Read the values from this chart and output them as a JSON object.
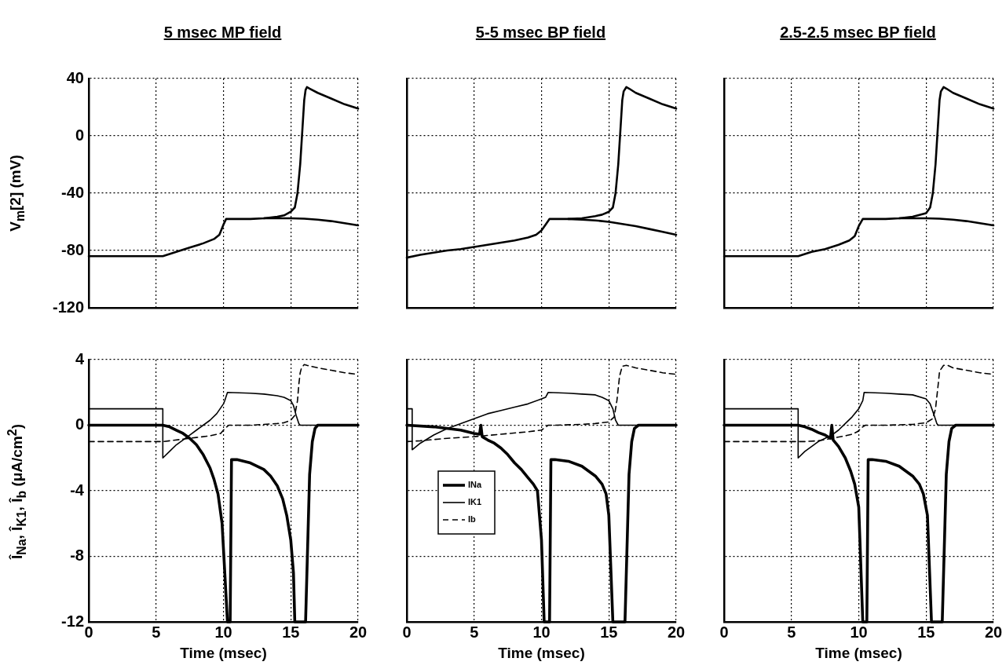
{
  "chart_data": [
    {
      "type": "line",
      "title": "5 msec MP field",
      "ylabel": "V$_{m}$[2] (mV)",
      "xlim": [
        0,
        20
      ],
      "xticks": [
        0,
        5,
        10,
        15,
        20
      ],
      "ylim": [
        -120,
        40
      ],
      "yticks": [
        -120,
        -80,
        -40,
        0,
        40
      ],
      "grid": true,
      "tick_labels": "y",
      "marker": "none",
      "series": [
        {
          "color": "#000000",
          "x": [
            0,
            5.5,
            6.5,
            7.5,
            8.5,
            9.3,
            9.7,
            10,
            10.2,
            11,
            12,
            13,
            14,
            14.5,
            15,
            15.3,
            15.5,
            15.7,
            15.8,
            15.9,
            16,
            16.1,
            16.2,
            16.4,
            17,
            18,
            19,
            20
          ],
          "values": [
            -84,
            -84,
            -81,
            -78,
            -75,
            -72,
            -69,
            -62,
            -58,
            -58,
            -58,
            -57.5,
            -56.5,
            -55.5,
            -53,
            -50,
            -40,
            -20,
            -5,
            10,
            25,
            32,
            34,
            33,
            30,
            26,
            22,
            19
          ]
        },
        {
          "color": "#000000",
          "x": [
            13,
            14,
            15,
            16,
            17,
            18,
            19,
            20
          ],
          "values": [
            -57.5,
            -57.5,
            -57.5,
            -57.8,
            -58.5,
            -59.5,
            -61,
            -62.5
          ]
        }
      ]
    },
    {
      "type": "line",
      "title": "5-5 msec BP field",
      "xlim": [
        0,
        20
      ],
      "xticks": [
        0,
        5,
        10,
        15,
        20
      ],
      "ylim": [
        -120,
        40
      ],
      "yticks": [
        -120,
        -80,
        -40,
        0,
        40
      ],
      "grid": true,
      "tick_labels": false,
      "marker": "none",
      "series": [
        {
          "color": "#000000",
          "x": [
            0,
            1,
            2,
            3,
            4,
            5,
            6,
            7,
            8,
            9,
            9.6,
            10,
            10.3,
            10.6,
            11,
            12,
            13,
            14,
            14.5,
            15,
            15.3,
            15.5,
            15.7,
            15.8,
            15.9,
            16,
            16.1,
            16.3,
            16.5,
            17,
            18,
            19,
            20
          ],
          "values": [
            -85,
            -83,
            -81.5,
            -80,
            -79,
            -77.5,
            -76,
            -74.5,
            -73,
            -71,
            -69,
            -66,
            -62,
            -58,
            -58,
            -58,
            -57.5,
            -56,
            -55,
            -53,
            -50,
            -40,
            -20,
            -5,
            10,
            25,
            31,
            34,
            33,
            30,
            26,
            22,
            19
          ]
        },
        {
          "color": "#000000",
          "x": [
            12,
            13,
            14,
            15,
            16,
            17,
            18,
            19,
            20
          ],
          "values": [
            -58,
            -58.5,
            -59,
            -60,
            -61.5,
            -63,
            -65,
            -67,
            -69
          ]
        }
      ]
    },
    {
      "type": "line",
      "title": "2.5-2.5 msec BP field",
      "xlim": [
        0,
        20
      ],
      "xticks": [
        0,
        5,
        10,
        15,
        20
      ],
      "ylim": [
        -120,
        40
      ],
      "yticks": [
        -120,
        -80,
        -40,
        0,
        40
      ],
      "grid": true,
      "tick_labels": false,
      "marker": "none",
      "series": [
        {
          "color": "#000000",
          "x": [
            0,
            5.5,
            6.5,
            7.5,
            8.5,
            9.3,
            9.7,
            10,
            10.3,
            11,
            12,
            13,
            14,
            15,
            15.3,
            15.5,
            15.7,
            15.8,
            15.9,
            16,
            16.1,
            16.3,
            16.5,
            17,
            18,
            19,
            20
          ],
          "values": [
            -84,
            -84,
            -81,
            -79,
            -76,
            -73,
            -70,
            -63,
            -58,
            -58,
            -58,
            -57.5,
            -56.5,
            -54,
            -50,
            -40,
            -20,
            -5,
            10,
            25,
            31,
            34,
            33,
            30,
            26,
            22,
            19
          ]
        },
        {
          "color": "#000000",
          "x": [
            13,
            14,
            15,
            16,
            17,
            18,
            19,
            20
          ],
          "values": [
            -57.5,
            -57.5,
            -57.5,
            -57.8,
            -58.5,
            -59.5,
            -61,
            -62.5
          ]
        }
      ]
    },
    {
      "type": "line",
      "xlabel": "Time (msec)",
      "ylabel": "Î$_{Na}$, Î$_{K1}$, Î$_{b}$ (μA/cm$^{2}$)",
      "xlim": [
        0,
        20
      ],
      "xticks": [
        0,
        5,
        10,
        15,
        20
      ],
      "ylim": [
        -12,
        4
      ],
      "yticks": [
        -12,
        -8,
        -4,
        0,
        4
      ],
      "grid": true,
      "marker": "none",
      "series": [
        {
          "color": "#000000",
          "line_style": "solid",
          "x": [
            0,
            5.5,
            6,
            6.5,
            7,
            7.5,
            8,
            8.5,
            9,
            9.3,
            9.6,
            9.9,
            10.1,
            10.3,
            10.5,
            10.6,
            11,
            12,
            13,
            13.5,
            14,
            14.4,
            14.7,
            15,
            15.2,
            15.3,
            16.1,
            16.3,
            16.4,
            16.6,
            16.8,
            17,
            20
          ],
          "values": [
            0,
            0,
            -0.1,
            -0.3,
            -0.5,
            -0.8,
            -1.2,
            -1.8,
            -2.6,
            -3.3,
            -4.2,
            -6,
            -9,
            -12,
            -12,
            -2.1,
            -2.1,
            -2.3,
            -2.7,
            -3.1,
            -3.7,
            -4.5,
            -5.5,
            -7,
            -9,
            -12,
            -12,
            -6,
            -3,
            -1,
            -0.2,
            0,
            0
          ]
        },
        {
          "color": "#000000",
          "line_style": "solid",
          "x": [
            0,
            5.5,
            5.5,
            6,
            6.5,
            7,
            7.5,
            8,
            8.5,
            9,
            9.5,
            10,
            10.1,
            10.3,
            12,
            13,
            14,
            14.5,
            15,
            15.2,
            15.4,
            15.6,
            15.7,
            20
          ],
          "values": [
            1,
            1,
            -2,
            -1.6,
            -1.2,
            -0.9,
            -0.6,
            -0.3,
            0,
            0.3,
            0.7,
            1.3,
            1.5,
            2,
            1.95,
            1.9,
            1.8,
            1.7,
            1.5,
            1.2,
            0.6,
            0.1,
            0,
            0
          ]
        },
        {
          "color": "#000000",
          "line_style": "dashed",
          "x": [
            0,
            5.5,
            6,
            7,
            8,
            9,
            9.8,
            10.1,
            10.4,
            11,
            12,
            13,
            14,
            14.5,
            15,
            15.3,
            15.5,
            15.6,
            15.7,
            15.8,
            16,
            16.2,
            17,
            18,
            19,
            20
          ],
          "values": [
            -1,
            -1,
            -0.95,
            -0.85,
            -0.75,
            -0.65,
            -0.5,
            -0.2,
            0,
            0,
            0,
            0.05,
            0.1,
            0.15,
            0.3,
            0.6,
            1.5,
            2.5,
            3.2,
            3.5,
            3.7,
            3.65,
            3.5,
            3.35,
            3.2,
            3.1
          ]
        }
      ]
    },
    {
      "type": "line",
      "xlabel": "Time (msec)",
      "xlim": [
        0,
        20
      ],
      "xticks": [
        0,
        5,
        10,
        15,
        20
      ],
      "ylim": [
        -12,
        4
      ],
      "yticks": [
        -12,
        -8,
        -4,
        0,
        4
      ],
      "grid": true,
      "tick_labels": "x",
      "legend": "left",
      "marker": "none",
      "series": [
        {
          "name": "INa",
          "color": "#000000",
          "line_style": "solid",
          "x": [
            0,
            2,
            4,
            5,
            5.4,
            5.5,
            5.6,
            6,
            6.5,
            7,
            7.5,
            8,
            8.5,
            9,
            9.4,
            9.7,
            10,
            10.2,
            10.6,
            10.7,
            11,
            12,
            13,
            13.5,
            14,
            14.5,
            14.8,
            15,
            15.3,
            16.2,
            16.4,
            16.5,
            16.7,
            16.9,
            17.2,
            20
          ],
          "values": [
            0,
            -0.1,
            -0.3,
            -0.5,
            -0.55,
            0,
            -0.7,
            -0.9,
            -1.1,
            -1.4,
            -1.8,
            -2.3,
            -2.7,
            -3.2,
            -3.6,
            -4,
            -7,
            -12,
            -12,
            -2.1,
            -2.1,
            -2.2,
            -2.5,
            -2.8,
            -3.1,
            -3.6,
            -4.2,
            -5.5,
            -12,
            -12,
            -6,
            -3,
            -1,
            -0.2,
            0,
            0
          ]
        },
        {
          "name": "IK1",
          "color": "#000000",
          "line_style": "solid",
          "x": [
            0,
            0.4,
            0.4,
            1,
            2,
            3,
            4,
            5,
            6,
            7,
            8,
            9,
            10,
            10.3,
            10.5,
            12,
            13,
            14,
            14.5,
            15,
            15.3,
            15.5,
            15.7,
            20
          ],
          "values": [
            1,
            1,
            -1.5,
            -1.1,
            -0.6,
            -0.2,
            0.1,
            0.4,
            0.7,
            0.9,
            1.1,
            1.3,
            1.6,
            1.7,
            2,
            1.95,
            1.9,
            1.85,
            1.7,
            1.5,
            1,
            0.3,
            0,
            0
          ]
        },
        {
          "name": "Ib",
          "color": "#000000",
          "line_style": "dashed",
          "x": [
            0,
            1,
            3,
            5,
            7,
            9,
            10,
            10.5,
            11,
            13,
            14,
            15,
            15.4,
            15.6,
            15.8,
            16,
            16.3,
            17,
            18,
            19,
            20
          ],
          "values": [
            -1,
            -0.95,
            -0.8,
            -0.7,
            -0.55,
            -0.4,
            -0.3,
            0,
            0,
            0.05,
            0.1,
            0.2,
            0.5,
            1.5,
            3,
            3.6,
            3.65,
            3.5,
            3.35,
            3.2,
            3.1
          ]
        }
      ]
    },
    {
      "type": "line",
      "xlabel": "Time (msec)",
      "xlim": [
        0,
        20
      ],
      "xticks": [
        0,
        5,
        10,
        15,
        20
      ],
      "ylim": [
        -12,
        4
      ],
      "yticks": [
        -12,
        -8,
        -4,
        0,
        4
      ],
      "grid": true,
      "tick_labels": "x",
      "marker": "none",
      "series": [
        {
          "color": "#000000",
          "line_style": "solid",
          "x": [
            0,
            5.5,
            6,
            6.5,
            7,
            7.5,
            7.9,
            8,
            8.1,
            8.5,
            9,
            9.4,
            9.7,
            10,
            10.3,
            10.6,
            10.7,
            11,
            12,
            13,
            13.5,
            14,
            14.5,
            14.8,
            15.1,
            15.4,
            16.2,
            16.4,
            16.5,
            16.7,
            16.9,
            17.2,
            20
          ],
          "values": [
            0,
            0,
            -0.1,
            -0.25,
            -0.45,
            -0.6,
            -0.8,
            0,
            -0.9,
            -1.3,
            -2,
            -2.8,
            -3.6,
            -5,
            -12,
            -12,
            -2.1,
            -2.1,
            -2.2,
            -2.5,
            -2.8,
            -3.1,
            -3.6,
            -4.2,
            -5.5,
            -12,
            -12,
            -6,
            -3,
            -1,
            -0.2,
            0,
            0
          ]
        },
        {
          "color": "#000000",
          "line_style": "solid",
          "x": [
            0,
            5.5,
            5.5,
            6,
            6.5,
            7,
            7.5,
            8,
            8.5,
            9,
            9.5,
            10,
            10.3,
            10.4,
            12,
            13,
            14,
            15,
            15.3,
            15.6,
            15.8,
            15.9,
            20
          ],
          "values": [
            1,
            1,
            -2,
            -1.6,
            -1.3,
            -1,
            -0.8,
            -0.6,
            -0.3,
            0.1,
            0.5,
            1,
            1.5,
            2,
            1.95,
            1.9,
            1.85,
            1.6,
            1.3,
            0.6,
            0.1,
            0,
            0
          ]
        },
        {
          "color": "#000000",
          "line_style": "dashed",
          "x": [
            0,
            5.5,
            6,
            7,
            8,
            9,
            9.5,
            9.9,
            10.3,
            10.5,
            12,
            14,
            15,
            15.5,
            15.7,
            15.9,
            16,
            16.3,
            16.6,
            17,
            18,
            19,
            20
          ],
          "values": [
            -1,
            -1,
            -1,
            -0.95,
            -0.8,
            -0.65,
            -0.55,
            -0.4,
            -0.1,
            0,
            0,
            0.05,
            0.15,
            0.4,
            1,
            2.5,
            3.3,
            3.65,
            3.65,
            3.5,
            3.35,
            3.2,
            3.1
          ]
        }
      ]
    }
  ]
}
